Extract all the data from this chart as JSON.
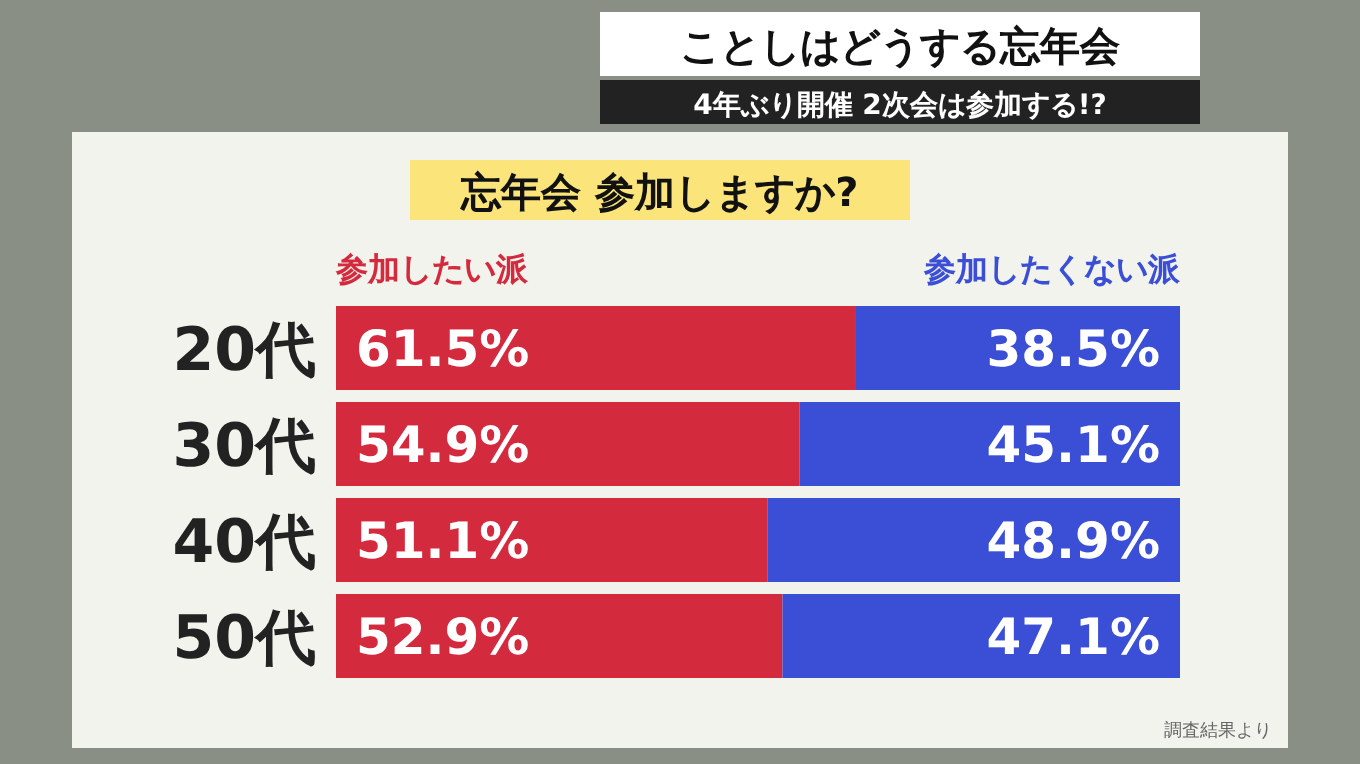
{
  "chart_data": {
    "type": "bar",
    "orientation": "horizontal",
    "stacked": true,
    "title": "忘年会 参加しますか?",
    "categories": [
      "20代",
      "30代",
      "40代",
      "50代"
    ],
    "series": [
      {
        "name": "参加したい派",
        "color": "#d42a3e",
        "values": [
          61.5,
          54.9,
          51.1,
          52.9
        ],
        "value_labels": [
          "61.5%",
          "54.9%",
          "51.1%",
          "52.9%"
        ]
      },
      {
        "name": "参加したくない派",
        "color": "#3a4fd6",
        "values": [
          38.5,
          45.1,
          48.9,
          47.1
        ],
        "value_labels": [
          "38.5%",
          "45.1%",
          "48.9%",
          "47.1%"
        ]
      }
    ],
    "annotations": [
      "ことしはどうする忘年会",
      "4年ぶり開催 2次会は参加する!?",
      "調査結果より"
    ]
  }
}
